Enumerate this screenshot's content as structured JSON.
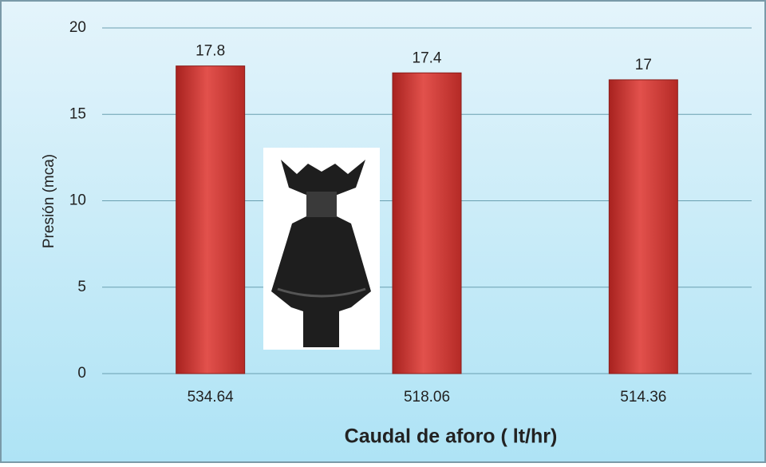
{
  "chart_data": {
    "type": "bar",
    "y_label": "Presión (mca)",
    "x_label": "Caudal de aforo ( lt/hr)",
    "categories": [
      "534.64",
      "518.06",
      "514.36"
    ],
    "values": [
      17.8,
      17.4,
      17
    ],
    "color": "#d9403c",
    "ylim": [
      0,
      20
    ],
    "yticks": [
      0,
      5,
      10,
      15,
      20
    ],
    "grid": true
  }
}
